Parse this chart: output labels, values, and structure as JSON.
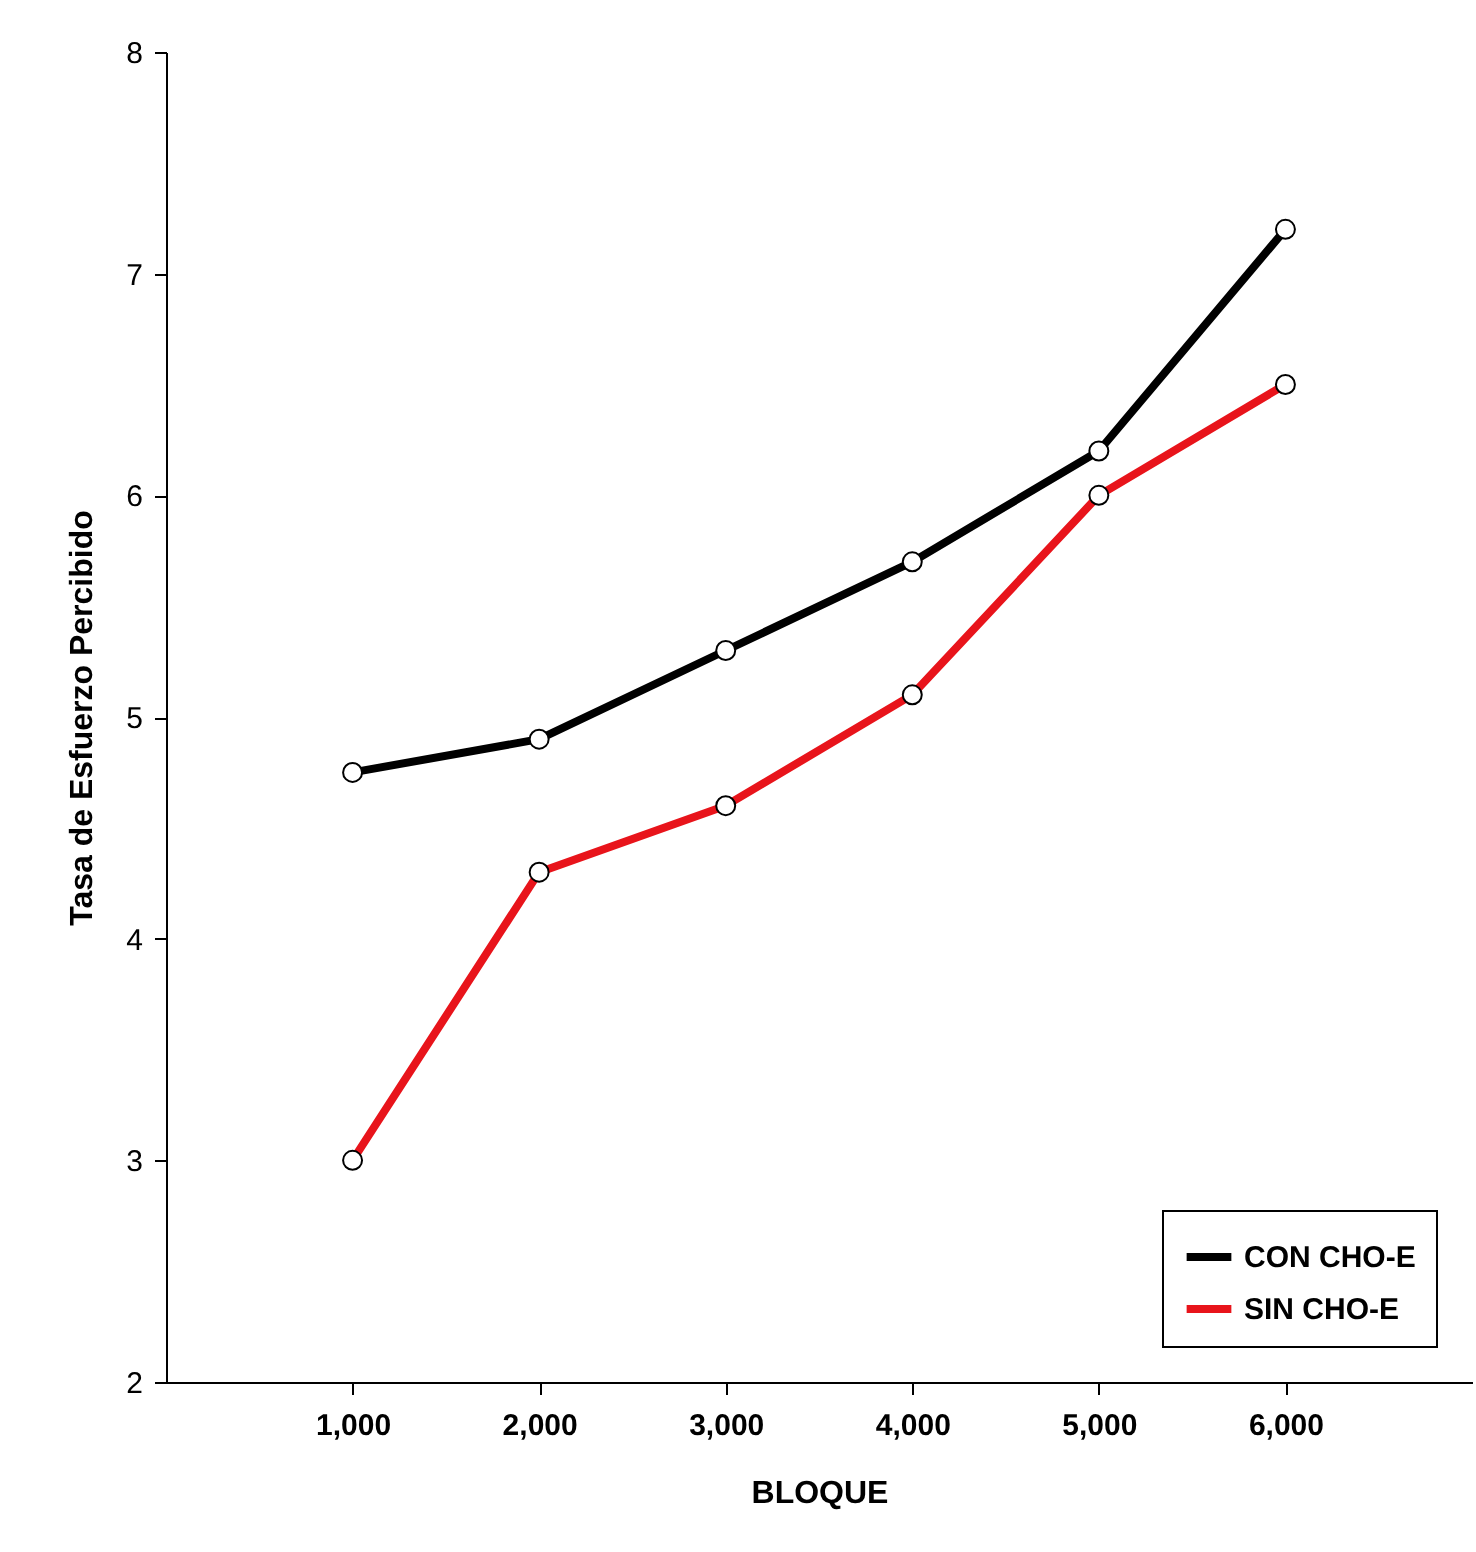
{
  "chart_data": {
    "type": "line",
    "xlabel": "BLOQUE",
    "ylabel": "Tasa de Esfuerzo Percibido",
    "x": [
      1000,
      2000,
      3000,
      4000,
      5000,
      6000
    ],
    "series": [
      {
        "name": "CON CHO-E",
        "color": "#000000",
        "values": [
          4.75,
          4.9,
          5.3,
          5.7,
          6.2,
          7.2
        ]
      },
      {
        "name": "SIN CHO-E",
        "color": "#e8141b",
        "values": [
          3.0,
          4.3,
          4.6,
          5.1,
          6.0,
          6.5
        ]
      }
    ],
    "xlim": [
      0,
      7000
    ],
    "xticks": [
      {
        "value": 1000,
        "label": "1,000"
      },
      {
        "value": 2000,
        "label": "2,000"
      },
      {
        "value": 3000,
        "label": "3,000"
      },
      {
        "value": 4000,
        "label": "4,000"
      },
      {
        "value": 5000,
        "label": "5,000"
      },
      {
        "value": 6000,
        "label": "6,000"
      }
    ],
    "ylim": [
      2,
      8
    ],
    "yticks": [
      2,
      3,
      4,
      5,
      6,
      7,
      8
    ],
    "grid": false,
    "legend": "bottom right",
    "marker": "circle",
    "line_style": "solid"
  }
}
